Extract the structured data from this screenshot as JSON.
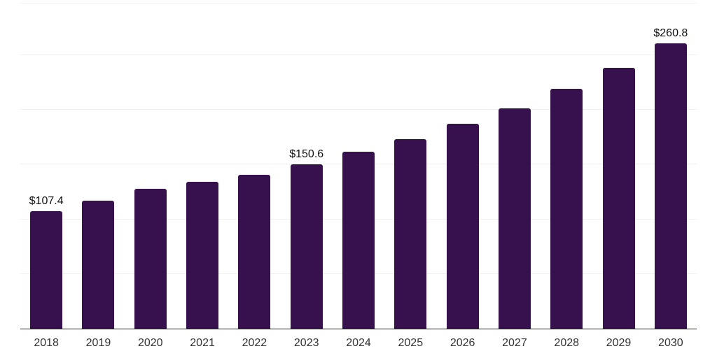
{
  "chart_data": {
    "type": "bar",
    "title": "",
    "xlabel": "",
    "ylabel": "",
    "categories": [
      "2018",
      "2019",
      "2020",
      "2021",
      "2022",
      "2023",
      "2024",
      "2025",
      "2026",
      "2027",
      "2028",
      "2029",
      "2030"
    ],
    "values": [
      107.4,
      117.1,
      128.0,
      134.0,
      140.6,
      150.6,
      161.6,
      173.6,
      187.2,
      201.7,
      219.3,
      238.8,
      260.8
    ],
    "data_labels": [
      "$107.4",
      "",
      "",
      "",
      "",
      "$150.6",
      "",
      "",
      "",
      "",
      "",
      "",
      "$260.8"
    ],
    "ylim": [
      0,
      298
    ],
    "gridline_values": [
      50,
      100,
      150,
      200,
      250
    ],
    "grid": "horizontal",
    "legend": "none",
    "bar_color": "#36114E",
    "gridline_color": "#f0f0f0",
    "axis_line_color": "#222222",
    "value_label_color": "#111111",
    "tick_label_color": "#333333"
  }
}
